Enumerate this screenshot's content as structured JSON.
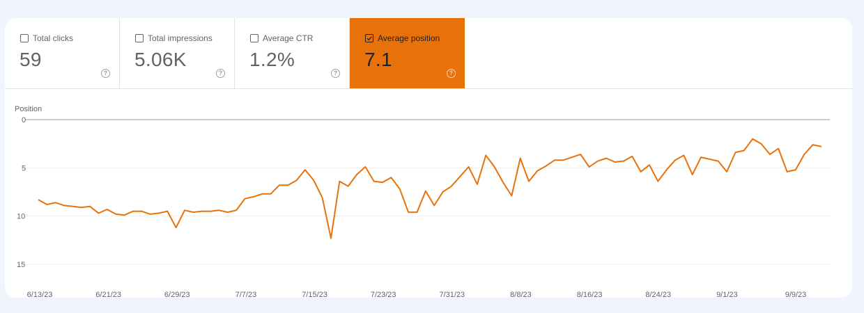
{
  "metrics": [
    {
      "label": "Total clicks",
      "value": "59",
      "checked": false
    },
    {
      "label": "Total impressions",
      "value": "5.06K",
      "checked": false
    },
    {
      "label": "Average CTR",
      "value": "1.2%",
      "checked": false
    },
    {
      "label": "Average position",
      "value": "7.1",
      "checked": true
    }
  ],
  "help_glyph": "?",
  "colors": {
    "accent": "#e8710a",
    "line": "#e8710a",
    "background": "#f0f4fc"
  },
  "chart_data": {
    "type": "line",
    "title": "",
    "ylabel": "Position",
    "xlabel": "",
    "ylim": [
      0,
      15
    ],
    "y_inverted": true,
    "yticks": [
      "0",
      "5",
      "10",
      "15"
    ],
    "xticks": [
      "6/13/23",
      "6/21/23",
      "6/29/23",
      "7/7/23",
      "7/15/23",
      "7/23/23",
      "7/31/23",
      "8/8/23",
      "8/16/23",
      "8/24/23",
      "9/1/23",
      "9/9/23"
    ],
    "grid": true,
    "legend": "none",
    "x_start": "6/13/23",
    "x_end": "9/12/23",
    "series": [
      {
        "name": "Average position",
        "color": "#e8710a",
        "values": [
          8.3,
          8.8,
          8.6,
          8.9,
          9.0,
          9.1,
          9.0,
          9.7,
          9.3,
          9.8,
          9.9,
          9.5,
          9.5,
          9.8,
          9.7,
          9.5,
          11.2,
          9.4,
          9.6,
          9.5,
          9.5,
          9.4,
          9.6,
          9.4,
          8.2,
          8.0,
          7.7,
          7.7,
          6.8,
          6.8,
          6.3,
          5.2,
          6.3,
          8.1,
          12.3,
          6.4,
          6.9,
          5.7,
          4.9,
          6.4,
          6.5,
          6.0,
          7.2,
          9.6,
          9.6,
          7.4,
          8.9,
          7.5,
          6.9,
          5.9,
          4.9,
          6.7,
          3.7,
          4.9,
          6.5,
          7.9,
          4.0,
          6.4,
          5.3,
          4.8,
          4.2,
          4.2,
          3.9,
          3.6,
          4.9,
          4.3,
          4.0,
          4.4,
          4.3,
          3.8,
          5.4,
          4.7,
          6.4,
          5.2,
          4.2,
          3.7,
          5.7,
          3.9,
          4.1,
          4.3,
          5.4,
          3.4,
          3.2,
          2.0,
          2.5,
          3.6,
          3.0,
          5.4,
          5.2,
          3.6,
          2.6,
          2.8
        ]
      }
    ]
  }
}
